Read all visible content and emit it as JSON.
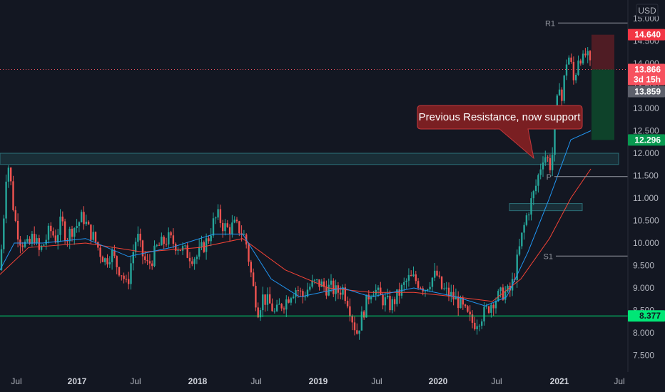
{
  "currency": "USD",
  "colors": {
    "background": "#131722",
    "up": "#26a69a",
    "down": "#ef5350",
    "ma_fast": "#2196f3",
    "ma_slow": "#f44336",
    "support_line": "#00e676",
    "zone": "#2a6b70",
    "stop_zone": "#4a1a20",
    "target_zone": "#0e3a26",
    "callout": "#7a1f22"
  },
  "callout_text": "Previous Resistance, now support",
  "price_tags": [
    {
      "value": "14.640",
      "bg": "#f23645",
      "fg": "#ffffff"
    },
    {
      "value": "13.866",
      "sub": "3d 15h",
      "bg": "#f7525f",
      "fg": "#ffffff"
    },
    {
      "value": "13.859",
      "bg": "#5d606b",
      "fg": "#ffffff"
    },
    {
      "value": "12.296",
      "bg": "#089950",
      "fg": "#ffffff"
    },
    {
      "value": "8.377",
      "bg": "#00e676",
      "fg": "#131722"
    }
  ],
  "chart_data": {
    "type": "candlestick",
    "y_axis": {
      "min": 7.1,
      "max": 15.1,
      "ticks": [
        "7.500",
        "8.000",
        "8.500",
        "9.000",
        "9.500",
        "10.000",
        "10.500",
        "11.000",
        "11.500",
        "12.000",
        "12.500",
        "13.000",
        "13.500",
        "14.000",
        "14.500",
        "15.000"
      ]
    },
    "x_axis": {
      "ticks": [
        {
          "label": "Jul",
          "year": false
        },
        {
          "label": "2017",
          "year": true
        },
        {
          "label": "Jul",
          "year": false
        },
        {
          "label": "2018",
          "year": true
        },
        {
          "label": "Jul",
          "year": false
        },
        {
          "label": "2019",
          "year": true
        },
        {
          "label": "Jul",
          "year": false
        },
        {
          "label": "2020",
          "year": true
        },
        {
          "label": "Jul",
          "year": false
        },
        {
          "label": "2021",
          "year": true
        },
        {
          "label": "Jul",
          "year": false
        }
      ]
    },
    "close_path": [
      [
        0,
        9.4
      ],
      [
        6,
        10.8
      ],
      [
        10,
        11.9
      ],
      [
        14,
        11.5
      ],
      [
        20,
        10.6
      ],
      [
        27,
        10.1
      ],
      [
        33,
        10.0
      ],
      [
        40,
        9.9
      ],
      [
        47,
        10.2
      ],
      [
        55,
        9.8
      ],
      [
        62,
        10.0
      ],
      [
        70,
        10.3
      ],
      [
        78,
        10.1
      ],
      [
        86,
        10.5
      ],
      [
        93,
        10.1
      ],
      [
        100,
        10.3
      ],
      [
        108,
        10.4
      ],
      [
        116,
        10.6
      ],
      [
        124,
        10.3
      ],
      [
        132,
        10.1
      ],
      [
        140,
        9.8
      ],
      [
        148,
        9.6
      ],
      [
        156,
        9.8
      ],
      [
        164,
        9.5
      ],
      [
        172,
        9.3
      ],
      [
        178,
        9.0
      ],
      [
        184,
        9.6
      ],
      [
        192,
        10.2
      ],
      [
        198,
        9.8
      ],
      [
        206,
        9.5
      ],
      [
        212,
        9.6
      ],
      [
        220,
        9.9
      ],
      [
        228,
        10.0
      ],
      [
        236,
        10.1
      ],
      [
        244,
        10.0
      ],
      [
        252,
        9.9
      ],
      [
        260,
        9.8
      ],
      [
        268,
        9.7
      ],
      [
        276,
        9.7
      ],
      [
        284,
        9.9
      ],
      [
        292,
        10.1
      ],
      [
        300,
        10.5
      ],
      [
        306,
        10.6
      ],
      [
        312,
        10.4
      ],
      [
        320,
        10.3
      ],
      [
        328,
        10.4
      ],
      [
        336,
        10.3
      ],
      [
        344,
        10.1
      ],
      [
        350,
        9.5
      ],
      [
        356,
        8.9
      ],
      [
        362,
        8.5
      ],
      [
        368,
        8.8
      ],
      [
        374,
        8.7
      ],
      [
        380,
        8.6
      ],
      [
        386,
        8.4
      ],
      [
        392,
        8.6
      ],
      [
        400,
        8.7
      ],
      [
        408,
        8.9
      ],
      [
        416,
        9.0
      ],
      [
        424,
        8.8
      ],
      [
        432,
        9.0
      ],
      [
        440,
        9.1
      ],
      [
        448,
        9.1
      ],
      [
        456,
        9.0
      ],
      [
        464,
        9.0
      ],
      [
        472,
        8.9
      ],
      [
        480,
        9.0
      ],
      [
        488,
        8.7
      ],
      [
        494,
        8.3
      ],
      [
        500,
        8.0
      ],
      [
        506,
        8.3
      ],
      [
        512,
        8.6
      ],
      [
        518,
        8.9
      ],
      [
        524,
        9.0
      ],
      [
        532,
        8.8
      ],
      [
        540,
        8.7
      ],
      [
        548,
        8.6
      ],
      [
        556,
        8.8
      ],
      [
        564,
        9.0
      ],
      [
        572,
        9.2
      ],
      [
        580,
        9.2
      ],
      [
        588,
        9.1
      ],
      [
        596,
        9.0
      ],
      [
        604,
        9.2
      ],
      [
        612,
        9.3
      ],
      [
        618,
        9.0
      ],
      [
        626,
        8.9
      ],
      [
        634,
        8.8
      ],
      [
        642,
        8.7
      ],
      [
        650,
        8.5
      ],
      [
        658,
        8.3
      ],
      [
        664,
        8.2
      ],
      [
        670,
        8.3
      ],
      [
        676,
        8.4
      ],
      [
        682,
        8.5
      ],
      [
        690,
        8.7
      ],
      [
        698,
        8.8
      ],
      [
        706,
        8.9
      ],
      [
        714,
        8.9
      ],
      [
        720,
        9.2
      ],
      [
        726,
        9.7
      ],
      [
        732,
        10.2
      ],
      [
        738,
        10.6
      ],
      [
        744,
        10.9
      ],
      [
        750,
        11.2
      ],
      [
        756,
        11.6
      ],
      [
        762,
        12.0
      ],
      [
        766,
        11.9
      ],
      [
        772,
        11.7
      ],
      [
        776,
        12.2
      ],
      [
        780,
        13.0
      ],
      [
        784,
        13.6
      ],
      [
        788,
        13.1
      ],
      [
        792,
        13.9
      ],
      [
        796,
        14.2
      ],
      [
        800,
        14.0
      ],
      [
        804,
        13.6
      ],
      [
        808,
        13.9
      ],
      [
        812,
        14.3
      ],
      [
        816,
        14.0
      ],
      [
        820,
        14.2
      ],
      [
        824,
        14.1
      ],
      [
        828,
        13.866
      ]
    ],
    "fast_ma_path": [
      [
        0,
        9.4
      ],
      [
        20,
        10.0
      ],
      [
        60,
        10.0
      ],
      [
        120,
        10.1
      ],
      [
        180,
        9.7
      ],
      [
        240,
        9.9
      ],
      [
        300,
        10.2
      ],
      [
        340,
        10.2
      ],
      [
        380,
        9.2
      ],
      [
        420,
        8.8
      ],
      [
        480,
        9.0
      ],
      [
        520,
        8.8
      ],
      [
        580,
        9.0
      ],
      [
        640,
        8.8
      ],
      [
        680,
        8.6
      ],
      [
        710,
        8.8
      ],
      [
        740,
        9.8
      ],
      [
        770,
        11.0
      ],
      [
        800,
        12.3
      ],
      [
        828,
        12.5
      ]
    ],
    "slow_ma_path": [
      [
        0,
        9.3
      ],
      [
        40,
        9.9
      ],
      [
        120,
        10.0
      ],
      [
        200,
        9.8
      ],
      [
        280,
        9.9
      ],
      [
        340,
        10.1
      ],
      [
        400,
        9.4
      ],
      [
        460,
        9.0
      ],
      [
        520,
        8.9
      ],
      [
        580,
        8.9
      ],
      [
        640,
        8.8
      ],
      [
        690,
        8.7
      ],
      [
        730,
        9.2
      ],
      [
        770,
        10.1
      ],
      [
        800,
        11.0
      ],
      [
        828,
        11.65
      ]
    ],
    "zones": [
      {
        "name": "resistance-support-zone",
        "top": 12.0,
        "bottom": 11.75
      },
      {
        "name": "lower-zone",
        "top": 10.88,
        "bottom": 10.72
      }
    ],
    "pivots": [
      {
        "label": "R1",
        "value": 14.9
      },
      {
        "label": "P",
        "value": 11.48
      },
      {
        "label": "S1",
        "value": 9.71
      }
    ],
    "current_price": 13.866,
    "stop_level": 14.64,
    "target_level": 12.296,
    "support_level": 8.377
  }
}
